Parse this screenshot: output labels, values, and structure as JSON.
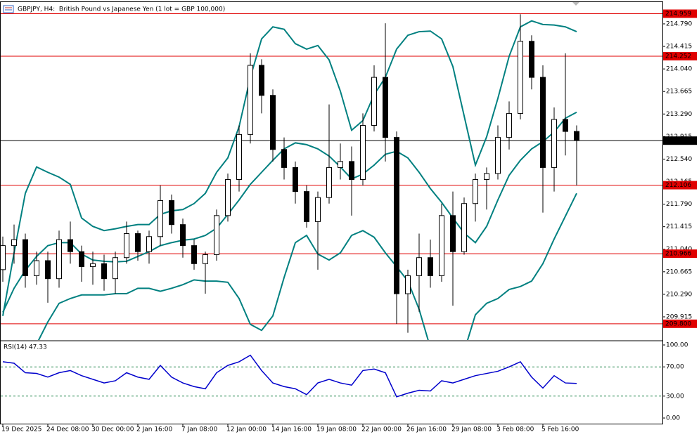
{
  "chart_data": [
    {
      "type": "candlestick",
      "title": "GBPJPY, H4:  British Pound vs Japanese Yen (1 lot = GBP 100,000)",
      "categories": [
        "19 Dec 2025",
        null,
        null,
        null,
        "24 Dec 08:00",
        null,
        null,
        null,
        "30 Dec 00:00",
        null,
        null,
        null,
        "2 Jan 16:00",
        null,
        null,
        null,
        "7 Jan 08:00",
        null,
        null,
        null,
        "12 Jan 00:00",
        null,
        null,
        null,
        "14 Jan 16:00",
        null,
        null,
        null,
        "19 Jan 08:00",
        null,
        null,
        null,
        "22 Jan 00:00",
        null,
        null,
        null,
        "26 Jan 16:00",
        null,
        null,
        null,
        "29 Jan 08:00",
        null,
        null,
        null,
        "3 Feb 08:00",
        null,
        null,
        null,
        "5 Feb 16:00",
        null,
        null,
        null
      ],
      "open": [
        210.7,
        211.1,
        211.2,
        210.6,
        210.85,
        210.55,
        211.2,
        211.0,
        210.75,
        210.8,
        210.55,
        210.9,
        211.3,
        211.0,
        211.25,
        211.85,
        211.45,
        211.1,
        210.8,
        210.95,
        211.6,
        212.2,
        212.95,
        214.1,
        213.6,
        212.7,
        212.4,
        212.0,
        211.5,
        211.9,
        212.4,
        212.5,
        212.2,
        213.1,
        213.9,
        212.9,
        210.3,
        210.6,
        210.9,
        210.6,
        211.6,
        211.0,
        211.8,
        212.2,
        212.3,
        212.9,
        213.3,
        214.5,
        213.9,
        212.4,
        213.2,
        213.0
      ],
      "high": [
        211.25,
        211.45,
        211.3,
        211.0,
        211.0,
        211.35,
        211.5,
        211.1,
        211.0,
        210.95,
        211.0,
        211.5,
        211.35,
        211.35,
        212.1,
        211.95,
        211.55,
        211.2,
        211.0,
        211.7,
        212.3,
        213.1,
        214.3,
        214.2,
        213.7,
        212.9,
        212.5,
        212.1,
        212.0,
        213.45,
        212.8,
        212.75,
        213.3,
        214.1,
        214.8,
        213.0,
        210.7,
        211.3,
        211.2,
        211.8,
        212.0,
        211.9,
        212.3,
        212.4,
        213.1,
        213.5,
        214.95,
        214.6,
        214.1,
        213.4,
        214.3,
        213.1
      ],
      "low": [
        210.5,
        210.8,
        210.4,
        210.45,
        210.15,
        210.4,
        210.8,
        210.5,
        210.45,
        210.35,
        210.3,
        210.8,
        210.85,
        210.8,
        211.1,
        211.3,
        210.9,
        210.7,
        210.3,
        210.85,
        211.5,
        212.0,
        212.8,
        213.3,
        212.5,
        212.2,
        211.8,
        211.4,
        210.7,
        211.8,
        212.2,
        211.6,
        212.1,
        213.0,
        212.5,
        209.8,
        209.65,
        210.0,
        210.4,
        210.5,
        210.1,
        210.95,
        211.5,
        211.7,
        212.2,
        212.7,
        213.2,
        213.7,
        211.65,
        212.0,
        212.6,
        212.1
      ],
      "close": [
        211.1,
        211.2,
        210.6,
        210.85,
        210.55,
        211.2,
        211.0,
        210.75,
        210.8,
        210.55,
        210.9,
        211.3,
        211.0,
        211.25,
        211.85,
        211.45,
        211.1,
        210.8,
        210.95,
        211.6,
        212.2,
        212.95,
        214.1,
        213.6,
        212.7,
        212.4,
        212.0,
        211.5,
        211.9,
        212.4,
        212.5,
        212.2,
        213.1,
        213.9,
        212.9,
        210.3,
        210.6,
        210.9,
        210.6,
        211.6,
        211.0,
        211.8,
        212.2,
        212.3,
        212.9,
        213.3,
        214.5,
        213.9,
        212.4,
        213.2,
        213.0,
        212.85
      ],
      "up_color": "#ffffff",
      "down_color": "#000000",
      "wick_color": "#000000",
      "bands": {
        "color": "#008080",
        "upper": [
          209.93,
          210.98,
          211.97,
          212.41,
          212.32,
          212.24,
          212.12,
          211.56,
          211.42,
          211.35,
          211.38,
          211.42,
          211.45,
          211.45,
          211.62,
          211.68,
          211.7,
          211.8,
          211.97,
          212.32,
          212.56,
          213.08,
          213.9,
          214.54,
          214.74,
          214.7,
          214.46,
          214.37,
          214.43,
          214.19,
          213.67,
          213.02,
          213.18,
          213.61,
          213.9,
          214.37,
          214.6,
          214.66,
          214.67,
          214.54,
          214.08,
          213.26,
          212.44,
          212.91,
          213.55,
          214.25,
          214.74,
          214.84,
          214.78,
          214.77,
          214.74,
          214.66
        ],
        "middle": [
          209.99,
          210.39,
          210.69,
          210.92,
          211.1,
          211.15,
          211.15,
          210.96,
          210.86,
          210.84,
          210.83,
          210.84,
          210.92,
          211.0,
          211.1,
          211.15,
          211.19,
          211.21,
          211.27,
          211.39,
          211.62,
          211.86,
          212.12,
          212.32,
          212.52,
          212.71,
          212.81,
          212.78,
          212.71,
          212.59,
          212.41,
          212.21,
          212.29,
          212.44,
          212.62,
          212.67,
          212.56,
          212.32,
          212.05,
          211.82,
          211.56,
          211.31,
          211.15,
          211.42,
          211.86,
          212.27,
          212.52,
          212.71,
          212.83,
          212.99,
          213.22,
          213.32
        ],
        "lower": [
          208.64,
          208.87,
          209.17,
          209.46,
          209.83,
          210.14,
          210.22,
          210.28,
          210.28,
          210.28,
          210.3,
          210.3,
          210.39,
          210.39,
          210.34,
          210.39,
          210.45,
          210.53,
          210.51,
          210.51,
          210.49,
          210.22,
          209.79,
          209.69,
          209.93,
          210.57,
          211.15,
          211.27,
          210.96,
          210.86,
          210.98,
          211.27,
          211.35,
          211.24,
          210.98,
          210.75,
          210.51,
          210.04,
          209.4,
          209.11,
          209.11,
          209.34,
          209.95,
          210.14,
          210.22,
          210.37,
          210.42,
          210.51,
          210.8,
          211.21,
          211.59,
          211.97
        ]
      },
      "ylim": [
        209.529,
        215.152
      ],
      "yticks": [
        {
          "value": 214.79,
          "label": "214.790"
        },
        {
          "value": 214.415,
          "label": "214.415"
        },
        {
          "value": 214.04,
          "label": "214.040"
        },
        {
          "value": 213.665,
          "label": "213.665"
        },
        {
          "value": 213.29,
          "label": "213.290"
        },
        {
          "value": 212.915,
          "label": "212.915"
        },
        {
          "value": 212.54,
          "label": "212.540"
        },
        {
          "value": 212.165,
          "label": "212.165"
        },
        {
          "value": 211.79,
          "label": "211.790"
        },
        {
          "value": 211.415,
          "label": "211.415"
        },
        {
          "value": 211.04,
          "label": "211.040"
        },
        {
          "value": 210.665,
          "label": "210.665"
        },
        {
          "value": 210.29,
          "label": "210.290"
        },
        {
          "value": 209.915,
          "label": "209.915"
        }
      ],
      "price_lines": [
        {
          "value": 214.959,
          "color": "#e00000"
        },
        {
          "value": 214.252,
          "color": "#e00000"
        },
        {
          "value": 212.847,
          "color": "#000000"
        },
        {
          "value": 212.106,
          "color": "#e00000"
        },
        {
          "value": 210.966,
          "color": "#e00000"
        },
        {
          "value": {
            "value": 209.8,
            "label": "209.800"
          },
          "color": "#e00000"
        }
      ]
    },
    {
      "type": "line",
      "title": "RSI(14) 47.33",
      "color": "#0000cc",
      "values": [
        77,
        75,
        62,
        61,
        56,
        62,
        65,
        58,
        53,
        48,
        51,
        62,
        56,
        53,
        72,
        56,
        48,
        43,
        40,
        62,
        72,
        77,
        86,
        65,
        48,
        43,
        40,
        32,
        48,
        53,
        48,
        45,
        65,
        67,
        62,
        29,
        34,
        38,
        37,
        51,
        48,
        53,
        58,
        61,
        64,
        70,
        77,
        56,
        41,
        58,
        48,
        47.33
      ],
      "ylim": [
        -7.7,
        104.8
      ],
      "yticks": [
        {
          "value": 100,
          "label": "100.00"
        },
        {
          "value": 70,
          "label": "70.00"
        },
        {
          "value": 30,
          "label": "30.00"
        },
        {
          "value": 0,
          "label": "0.00"
        }
      ],
      "levels": [
        70,
        30
      ]
    }
  ]
}
